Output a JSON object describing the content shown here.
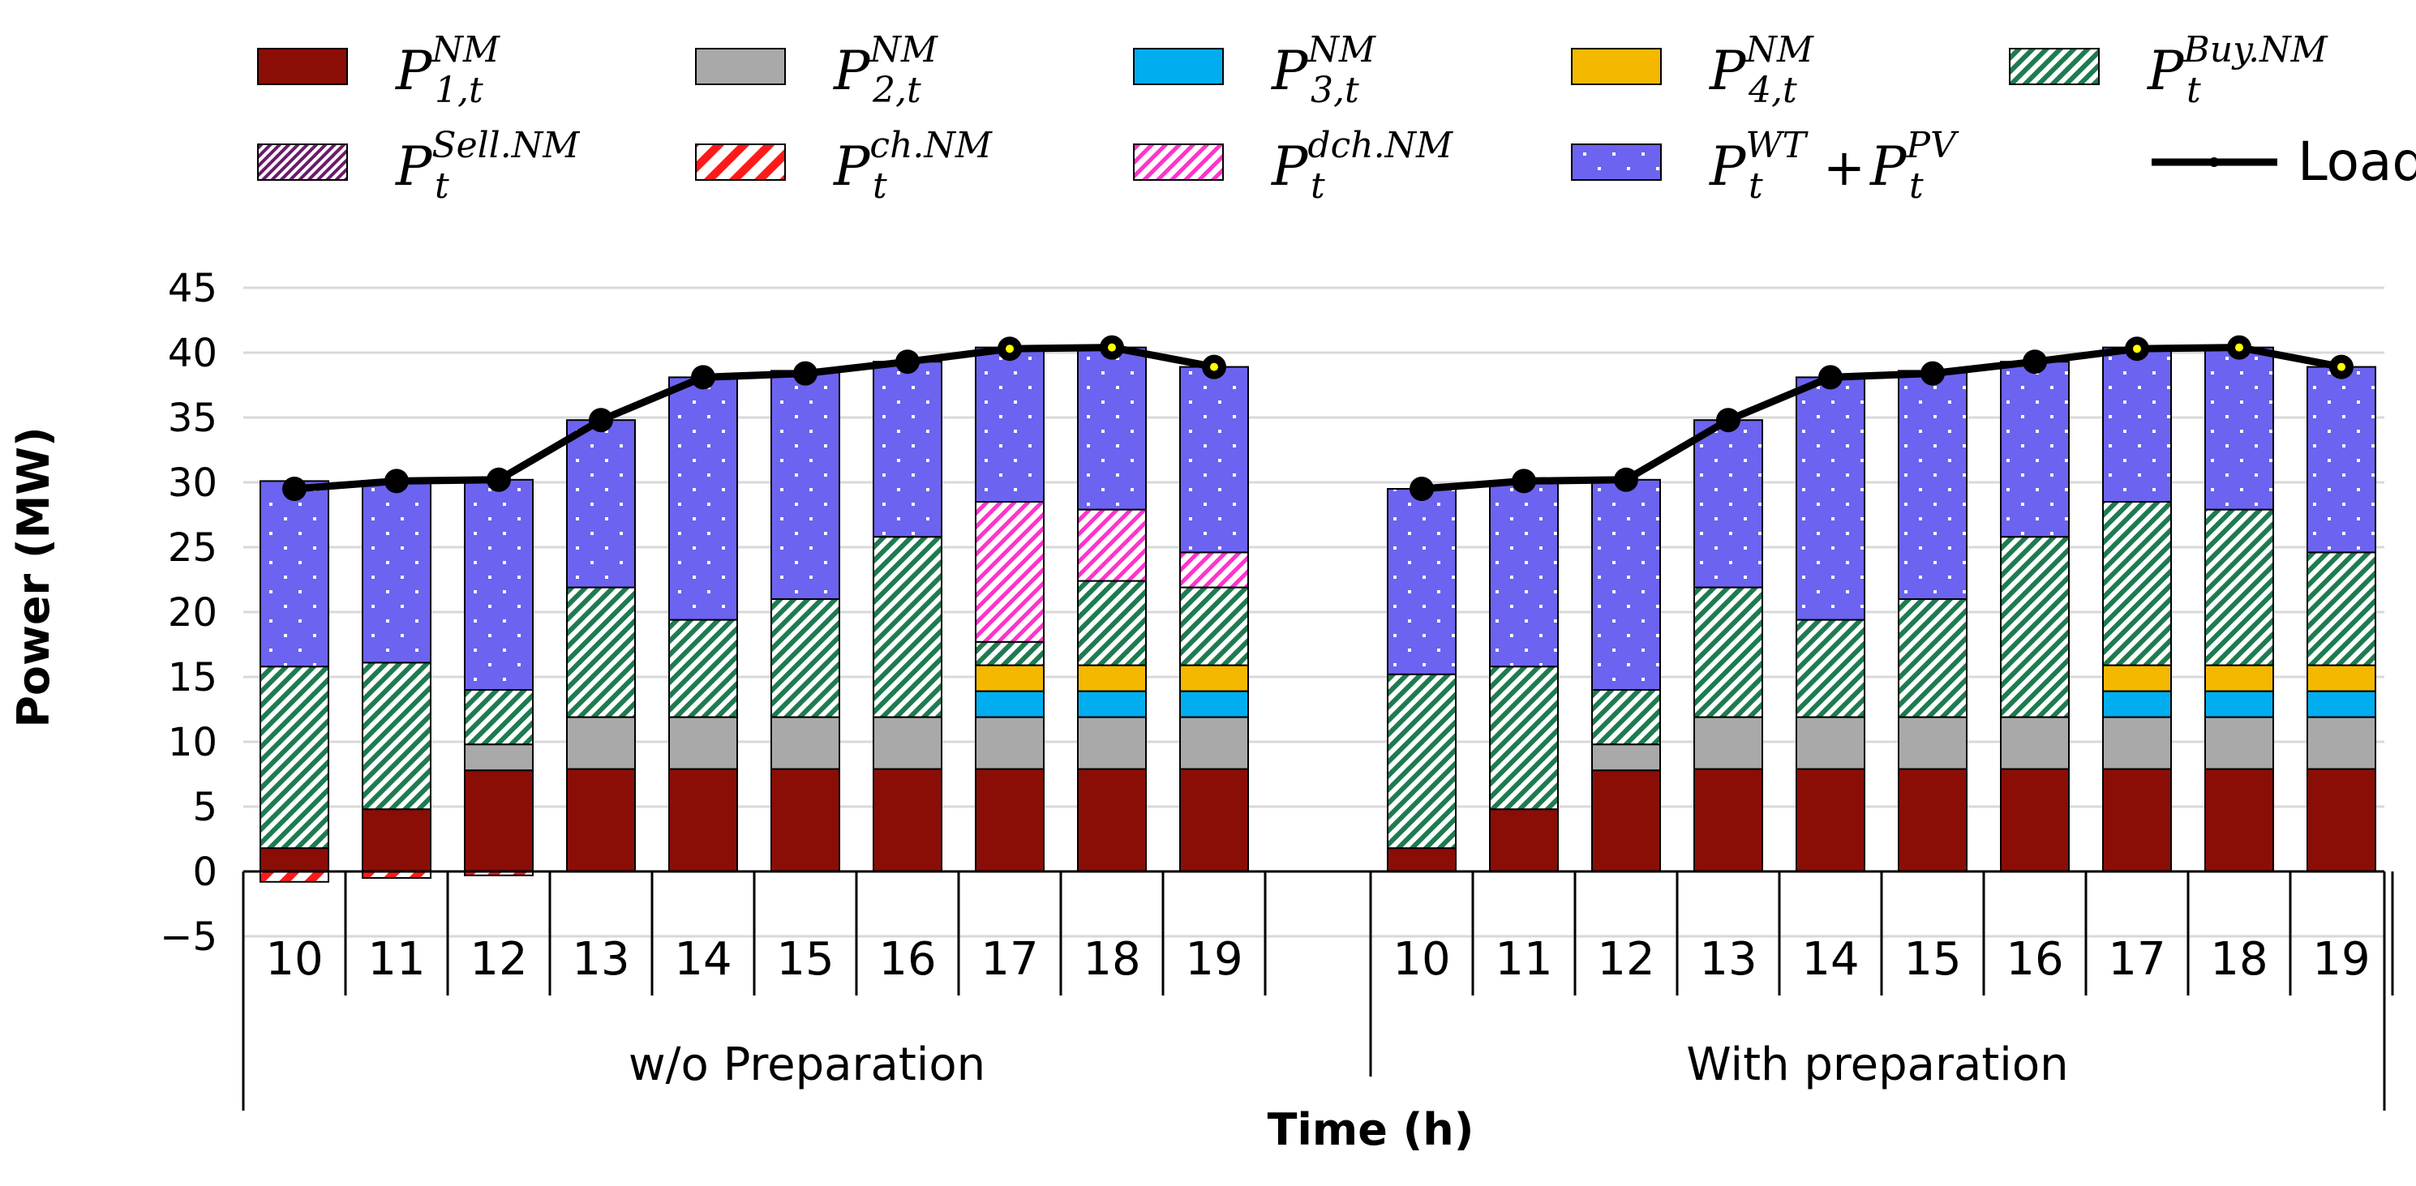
{
  "chart_data": {
    "type": "bar",
    "stacked": true,
    "ylabel": "Power (MW)",
    "xlabel": "Time (h)",
    "ylim": [
      -5,
      45
    ],
    "yticks": [
      45,
      40,
      35,
      30,
      25,
      20,
      15,
      10,
      5,
      0,
      -5
    ],
    "gridlines": true,
    "legend_position": "top",
    "hours": [
      "10",
      "11",
      "12",
      "13",
      "14",
      "15",
      "16",
      "17",
      "18",
      "19"
    ],
    "legend": [
      {
        "key": "p1",
        "base": "P",
        "sup": "NM",
        "sub": "1,t",
        "color": "#8B0E06",
        "pattern": "solid"
      },
      {
        "key": "p2",
        "base": "P",
        "sup": "NM",
        "sub": "2,t",
        "color": "#A9A9A9",
        "pattern": "solid"
      },
      {
        "key": "p3",
        "base": "P",
        "sup": "NM",
        "sub": "3,t",
        "color": "#00AEEF",
        "pattern": "solid"
      },
      {
        "key": "p4",
        "base": "P",
        "sup": "NM",
        "sub": "4,t",
        "color": "#F5B800",
        "pattern": "solid"
      },
      {
        "key": "buy",
        "base": "P",
        "sup": "Buy.NM",
        "sub": "t",
        "color": "#1E7B50",
        "pattern": "diag"
      },
      {
        "key": "sell",
        "base": "P",
        "sup": "Sell.NM",
        "sub": "t",
        "color": "#6A1B6A",
        "pattern": "diag-dense"
      },
      {
        "key": "ch",
        "base": "P",
        "sup": "ch.NM",
        "sub": "t",
        "color": "#FF1A1A",
        "pattern": "diag-wide"
      },
      {
        "key": "dch",
        "base": "P",
        "sup": "dch.NM",
        "sub": "t",
        "color": "#FF33CC",
        "pattern": "diag"
      },
      {
        "key": "ren",
        "base": "P",
        "sup": "WT",
        "sub": "t",
        "plus": "+",
        "base2": "P",
        "sup2": "PV",
        "sub2": "t",
        "color": "#6C63F0",
        "pattern": "dots"
      },
      {
        "key": "load",
        "label": "Load",
        "color": "#000000",
        "pattern": "line"
      }
    ],
    "groups": [
      {
        "name": "w/o Preparation",
        "series": {
          "p1": [
            1.8,
            4.8,
            7.8,
            7.9,
            7.9,
            7.9,
            7.9,
            7.9,
            7.9,
            7.9
          ],
          "p2": [
            0,
            0,
            2.0,
            4.0,
            4.0,
            4.0,
            4.0,
            4.0,
            4.0,
            4.0
          ],
          "p3": [
            0,
            0,
            0,
            0,
            0,
            0,
            0,
            2.0,
            2.0,
            2.0
          ],
          "p4": [
            0,
            0,
            0,
            0,
            0,
            0,
            0,
            2.0,
            2.0,
            2.0
          ],
          "buy": [
            14.0,
            11.3,
            4.2,
            10.0,
            7.5,
            9.1,
            13.9,
            1.8,
            6.5,
            6.0
          ],
          "sell": [
            0,
            0,
            0,
            0,
            0,
            0,
            0,
            0,
            0,
            0
          ],
          "ch": [
            -0.8,
            -0.5,
            -0.3,
            0,
            0,
            0,
            0,
            0,
            0,
            0
          ],
          "dch": [
            0,
            0,
            0,
            0,
            0,
            0,
            0,
            10.8,
            5.5,
            2.7
          ],
          "ren": [
            14.3,
            14.0,
            16.2,
            12.9,
            18.7,
            17.6,
            13.5,
            11.9,
            12.5,
            14.3
          ]
        },
        "load": [
          29.5,
          30.1,
          30.2,
          34.8,
          38.1,
          38.4,
          39.3,
          40.3,
          40.4,
          38.9
        ]
      },
      {
        "name": "With preparation",
        "series": {
          "p1": [
            1.8,
            4.8,
            7.8,
            7.9,
            7.9,
            7.9,
            7.9,
            7.9,
            7.9,
            7.9
          ],
          "p2": [
            0,
            0,
            2.0,
            4.0,
            4.0,
            4.0,
            4.0,
            4.0,
            4.0,
            4.0
          ],
          "p3": [
            0,
            0,
            0,
            0,
            0,
            0,
            0,
            2.0,
            2.0,
            2.0
          ],
          "p4": [
            0,
            0,
            0,
            0,
            0,
            0,
            0,
            2.0,
            2.0,
            2.0
          ],
          "buy": [
            13.4,
            11.0,
            4.2,
            10.0,
            7.5,
            9.1,
            13.9,
            12.6,
            12.0,
            8.7
          ],
          "sell": [
            0,
            0,
            0,
            0,
            0,
            0,
            0,
            0,
            0,
            0
          ],
          "ch": [
            0,
            0,
            0,
            0,
            0,
            0,
            0,
            0,
            0,
            0
          ],
          "dch": [
            0,
            0,
            0,
            0,
            0,
            0,
            0,
            0,
            0,
            0
          ],
          "ren": [
            14.3,
            14.3,
            16.2,
            12.9,
            18.7,
            17.6,
            13.5,
            11.9,
            12.5,
            14.3
          ]
        },
        "load": [
          29.5,
          30.1,
          30.2,
          34.8,
          38.1,
          38.4,
          39.3,
          40.3,
          40.4,
          38.9
        ]
      }
    ]
  }
}
